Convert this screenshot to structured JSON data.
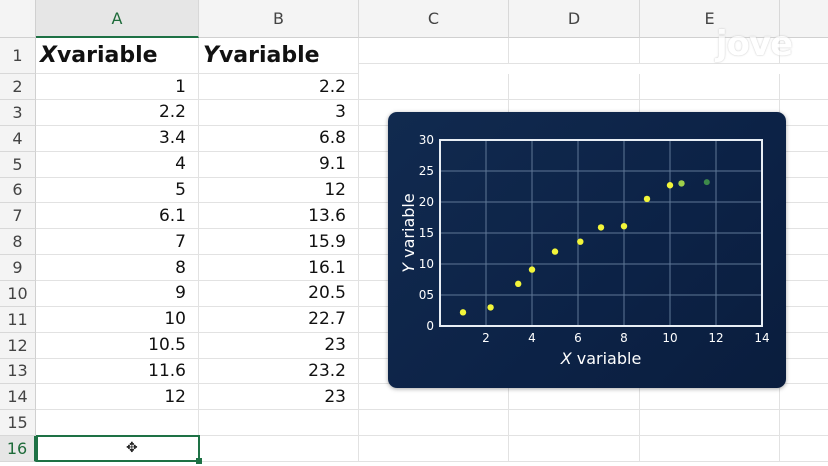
{
  "sheet": {
    "columns": [
      "A",
      "B",
      "C",
      "D",
      "E"
    ],
    "selected_column": "A",
    "rows": [
      "1",
      "2",
      "3",
      "4",
      "5",
      "6",
      "7",
      "8",
      "9",
      "10",
      "11",
      "12",
      "13",
      "14",
      "15",
      "16"
    ],
    "selected_row": "16",
    "header_row": {
      "a_var": "X",
      "a_rest": " variable",
      "b_var": "Y",
      "b_rest": " variable"
    },
    "data": [
      {
        "x": "1",
        "y": "2.2"
      },
      {
        "x": "2.2",
        "y": "3"
      },
      {
        "x": "3.4",
        "y": "6.8"
      },
      {
        "x": "4",
        "y": "9.1"
      },
      {
        "x": "5",
        "y": "12"
      },
      {
        "x": "6.1",
        "y": "13.6"
      },
      {
        "x": "7",
        "y": "15.9"
      },
      {
        "x": "8",
        "y": "16.1"
      },
      {
        "x": "9",
        "y": "20.5"
      },
      {
        "x": "10",
        "y": "22.7"
      },
      {
        "x": "10.5",
        "y": "23"
      },
      {
        "x": "11.6",
        "y": "23.2"
      },
      {
        "x": "12",
        "y": "23"
      }
    ]
  },
  "watermark": {
    "text": "jove"
  },
  "chart_data": {
    "type": "scatter",
    "x": [
      1,
      2.2,
      3.4,
      4,
      5,
      6.1,
      7,
      8,
      9,
      10,
      10.5
    ],
    "y": [
      2.2,
      3,
      6.8,
      9.1,
      12,
      13.6,
      15.9,
      16.1,
      20.5,
      22.7,
      23
    ],
    "xlabel_var": "X",
    "xlabel_rest": " variable",
    "ylabel_var": "Y",
    "ylabel_rest": " variable",
    "xlim": [
      0,
      14
    ],
    "ylim": [
      0,
      30
    ],
    "xticks": [
      "2",
      "4",
      "6",
      "8",
      "10",
      "12",
      "14"
    ],
    "yticks": [
      "0",
      "05",
      "10",
      "15",
      "20",
      "25",
      "30"
    ],
    "grid": true,
    "point_color": "#f2f53a",
    "background": "#0c2246"
  }
}
